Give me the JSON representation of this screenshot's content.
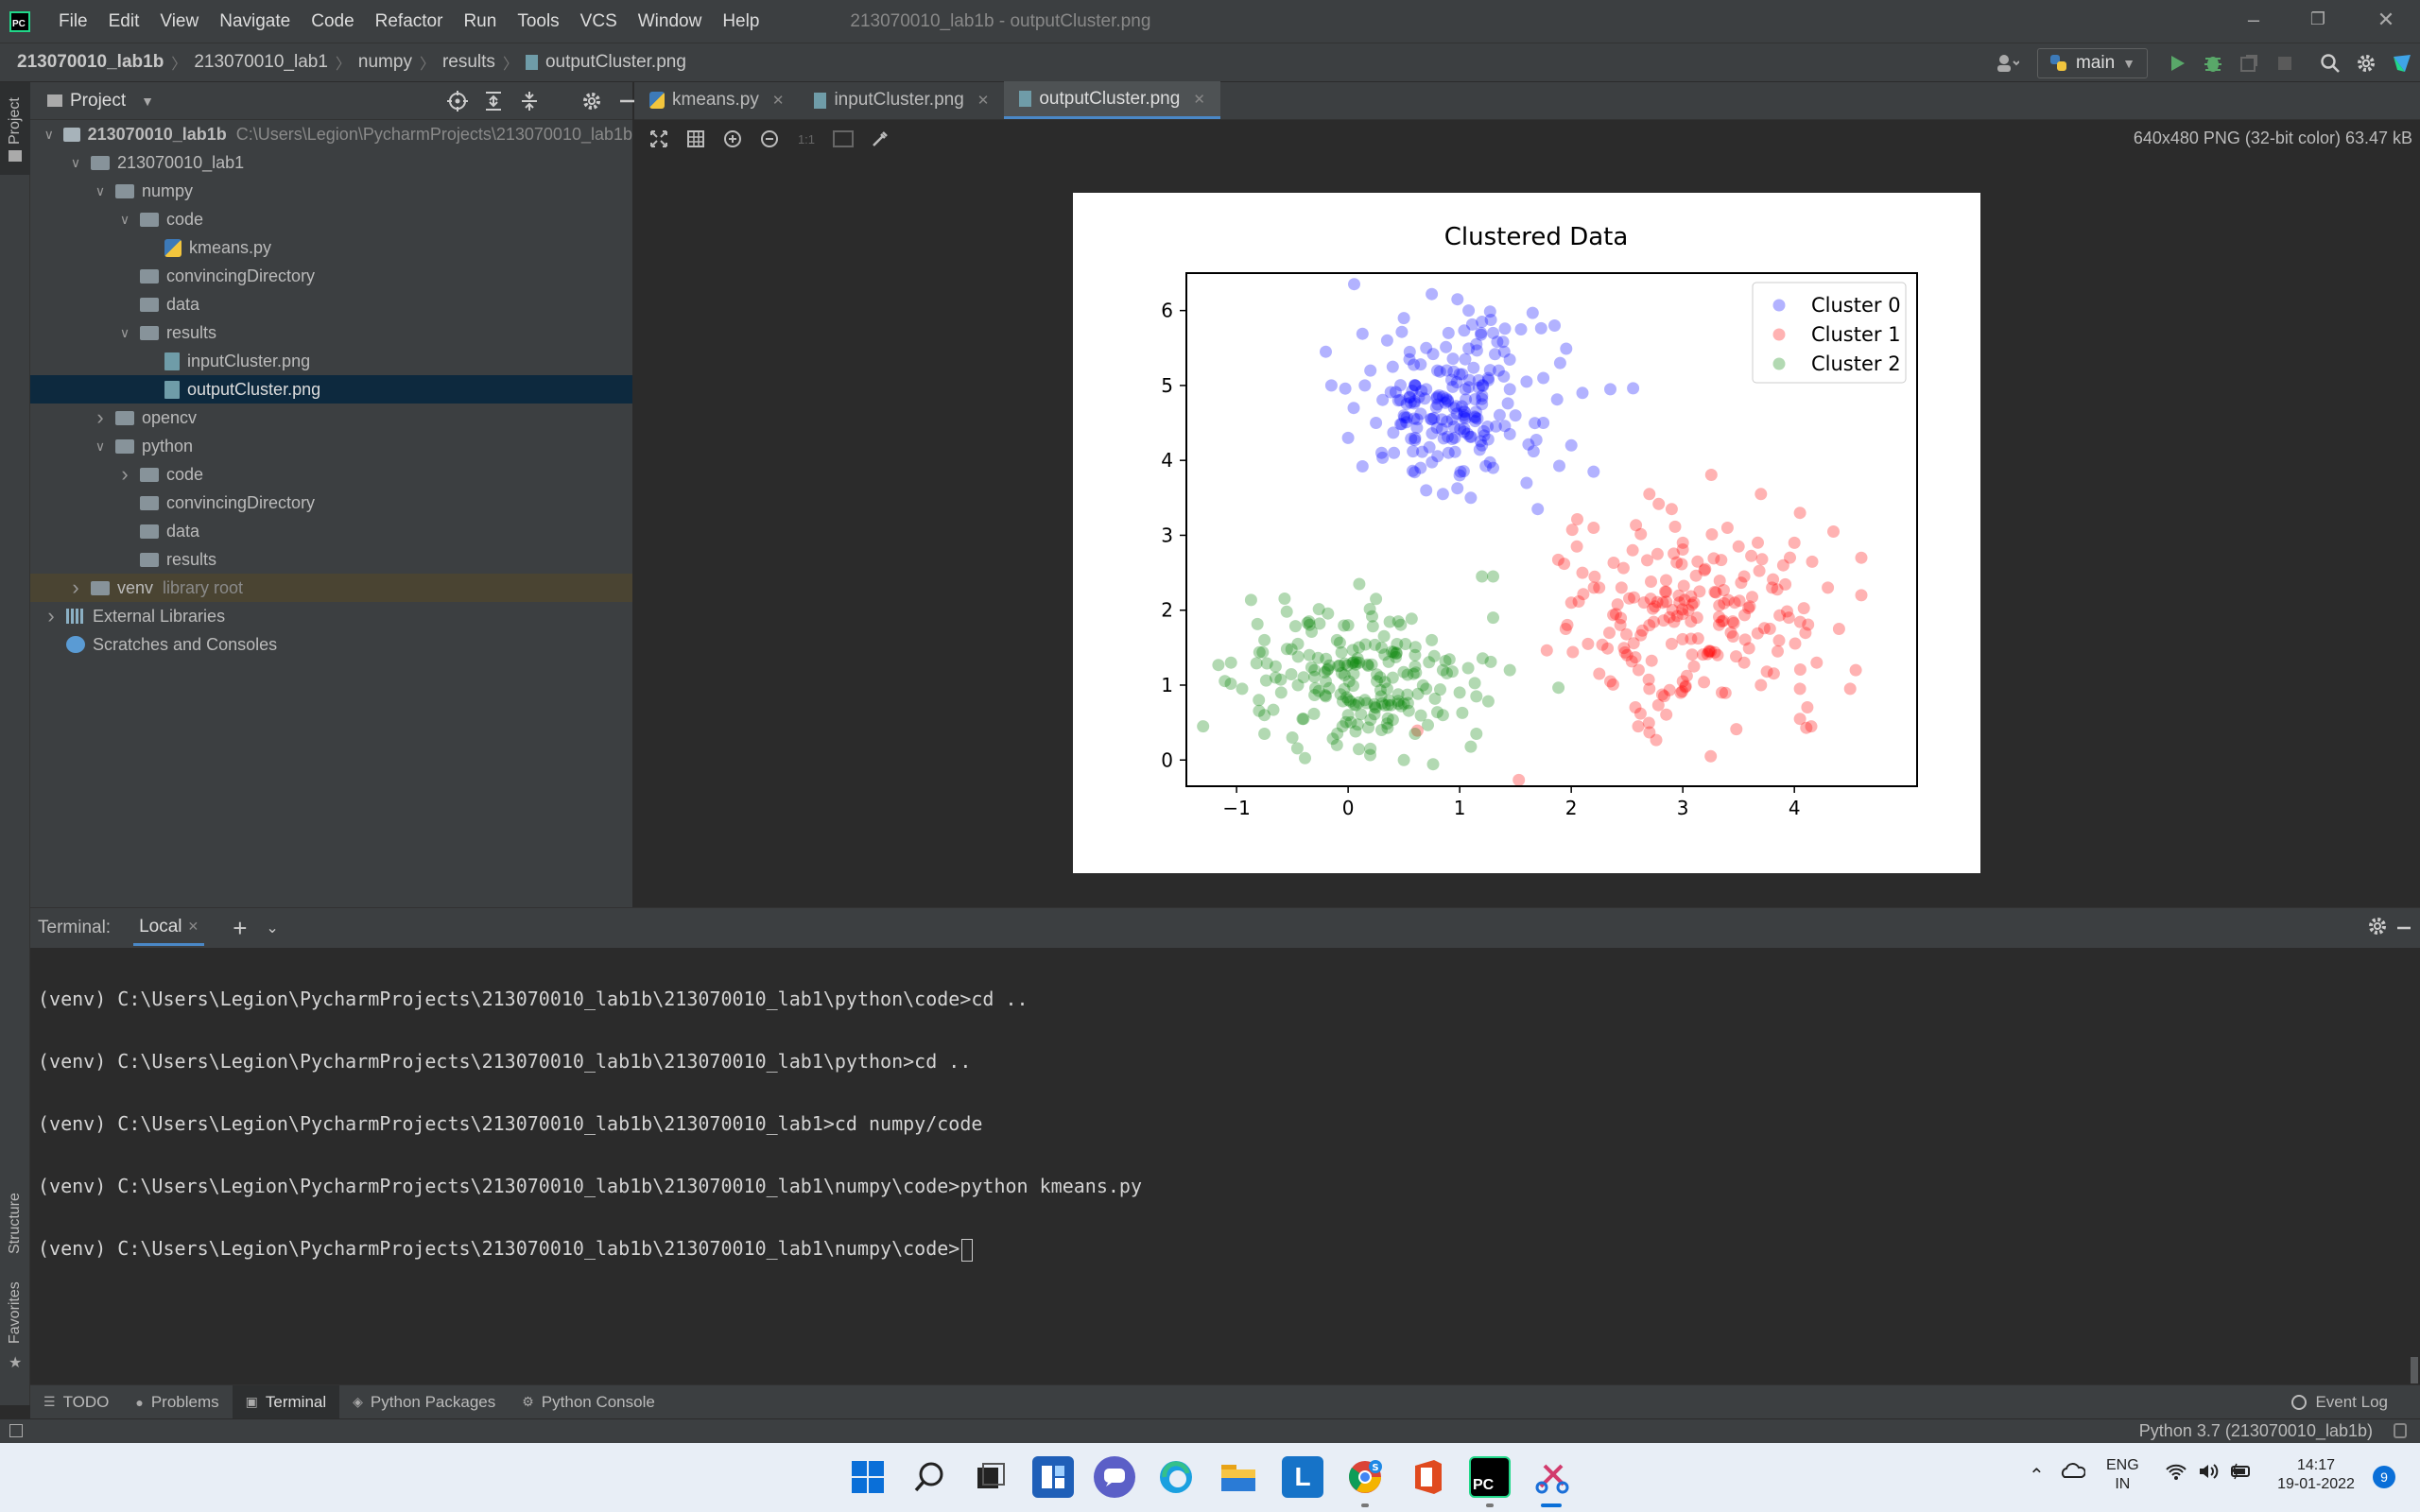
{
  "window": {
    "title": "213070010_lab1b - outputCluster.png",
    "menu": [
      "File",
      "Edit",
      "View",
      "Navigate",
      "Code",
      "Refactor",
      "Run",
      "Tools",
      "VCS",
      "Window",
      "Help"
    ]
  },
  "breadcrumb": [
    "213070010_lab1b",
    "213070010_lab1",
    "numpy",
    "results",
    "outputCluster.png"
  ],
  "toolbar": {
    "branch": "main"
  },
  "left_strip": {
    "project": "Project",
    "structure": "Structure",
    "favorites": "Favorites"
  },
  "project_panel": {
    "title": "Project",
    "root_path": "C:\\Users\\Legion\\PycharmProjects\\213070010_lab1b",
    "tree": [
      {
        "label": "213070010_lab1b",
        "depth": 0,
        "kind": "root",
        "open": true
      },
      {
        "label": "213070010_lab1",
        "depth": 1,
        "kind": "folder",
        "open": true
      },
      {
        "label": "numpy",
        "depth": 2,
        "kind": "folder",
        "open": true
      },
      {
        "label": "code",
        "depth": 3,
        "kind": "folder",
        "open": true
      },
      {
        "label": "kmeans.py",
        "depth": 4,
        "kind": "py"
      },
      {
        "label": "convincingDirectory",
        "depth": 3,
        "kind": "folder"
      },
      {
        "label": "data",
        "depth": 3,
        "kind": "folder"
      },
      {
        "label": "results",
        "depth": 3,
        "kind": "folder",
        "open": true
      },
      {
        "label": "inputCluster.png",
        "depth": 4,
        "kind": "file"
      },
      {
        "label": "outputCluster.png",
        "depth": 4,
        "kind": "file",
        "selected": true
      },
      {
        "label": "opencv",
        "depth": 2,
        "kind": "folder",
        "closed": true
      },
      {
        "label": "python",
        "depth": 2,
        "kind": "folder",
        "open": true
      },
      {
        "label": "code",
        "depth": 3,
        "kind": "folder",
        "closed": true
      },
      {
        "label": "convincingDirectory",
        "depth": 3,
        "kind": "folder"
      },
      {
        "label": "data",
        "depth": 3,
        "kind": "folder"
      },
      {
        "label": "results",
        "depth": 3,
        "kind": "folder"
      },
      {
        "label": "venv",
        "depth": 1,
        "kind": "folder",
        "closed": true,
        "note": "library root",
        "venv": true
      },
      {
        "label": "External Libraries",
        "depth": 0,
        "kind": "lib",
        "closed": true
      },
      {
        "label": "Scratches and Consoles",
        "depth": 0,
        "kind": "scratch"
      }
    ]
  },
  "editor": {
    "tabs": [
      {
        "label": "kmeans.py",
        "icon": "python-file-icon"
      },
      {
        "label": "inputCluster.png",
        "icon": "image-file-icon"
      },
      {
        "label": "outputCluster.png",
        "icon": "image-file-icon",
        "active": true
      }
    ],
    "image_info": "640x480 PNG (32-bit color) 63.47 kB"
  },
  "chart_data": {
    "type": "scatter",
    "title": "Clustered Data",
    "xlim": [
      -1.45,
      5.1
    ],
    "ylim": [
      -0.35,
      6.5
    ],
    "xticks": [
      -1,
      0,
      1,
      2,
      3,
      4
    ],
    "xtick_labels": [
      "−1",
      "0",
      "1",
      "2",
      "3",
      "4"
    ],
    "yticks": [
      0,
      1,
      2,
      3,
      4,
      5,
      6
    ],
    "legend_position": "top-right",
    "series": [
      {
        "name": "Cluster 0",
        "color": "#0000ff",
        "center": [
          0.92,
          4.75
        ],
        "spread": [
          0.42,
          0.55
        ],
        "n": 210,
        "points": [
          [
            0.75,
            6.22
          ],
          [
            0.98,
            6.15
          ],
          [
            1.08,
            6.0
          ],
          [
            1.2,
            5.85
          ],
          [
            0.5,
            5.9
          ],
          [
            0.35,
            5.6
          ],
          [
            0.7,
            5.5
          ],
          [
            1.3,
            5.7
          ],
          [
            1.55,
            5.75
          ],
          [
            1.85,
            5.8
          ],
          [
            1.9,
            5.3
          ],
          [
            1.75,
            5.1
          ],
          [
            1.35,
            5.2
          ],
          [
            1.05,
            5.35
          ],
          [
            0.8,
            5.2
          ],
          [
            0.6,
            5.0
          ],
          [
            0.4,
            5.25
          ],
          [
            0.15,
            5.0
          ],
          [
            -0.2,
            5.45
          ],
          [
            -0.15,
            5.0
          ],
          [
            0.05,
            4.7
          ],
          [
            0.25,
            4.5
          ],
          [
            0.5,
            4.6
          ],
          [
            0.75,
            4.55
          ],
          [
            0.95,
            4.7
          ],
          [
            1.2,
            4.75
          ],
          [
            1.5,
            4.6
          ],
          [
            1.75,
            4.5
          ],
          [
            2.1,
            4.9
          ],
          [
            2.35,
            4.95
          ],
          [
            0.0,
            4.3
          ],
          [
            0.3,
            4.1
          ],
          [
            0.6,
            4.3
          ],
          [
            0.9,
            4.1
          ],
          [
            1.2,
            4.2
          ],
          [
            1.45,
            4.35
          ],
          [
            0.65,
            3.9
          ],
          [
            1.0,
            3.8
          ],
          [
            1.3,
            3.9
          ],
          [
            1.6,
            3.7
          ],
          [
            1.1,
            3.5
          ],
          [
            0.85,
            3.55
          ],
          [
            0.7,
            3.6
          ],
          [
            2.0,
            4.2
          ],
          [
            2.2,
            3.85
          ],
          [
            1.7,
            3.35
          ],
          [
            0.9,
            5.7
          ],
          [
            1.15,
            5.55
          ],
          [
            1.4,
            5.45
          ],
          [
            0.55,
            5.35
          ],
          [
            0.85,
            4.85
          ],
          [
            1.05,
            4.95
          ],
          [
            0.45,
            4.8
          ],
          [
            0.2,
            5.2
          ],
          [
            1.6,
            5.05
          ],
          [
            0.95,
            4.45
          ],
          [
            1.25,
            4.45
          ],
          [
            0.7,
            4.95
          ],
          [
            1.0,
            5.15
          ],
          [
            1.45,
            4.95
          ]
        ]
      },
      {
        "name": "Cluster 1",
        "color": "#ff0000",
        "center": [
          3.1,
          1.9
        ],
        "spread": [
          0.58,
          0.62
        ],
        "n": 210,
        "points": [
          [
            2.7,
            3.55
          ],
          [
            3.7,
            3.55
          ],
          [
            2.9,
            3.35
          ],
          [
            3.4,
            3.1
          ],
          [
            4.05,
            3.3
          ],
          [
            4.35,
            3.05
          ],
          [
            2.2,
            3.1
          ],
          [
            2.55,
            2.8
          ],
          [
            3.0,
            2.9
          ],
          [
            3.5,
            2.85
          ],
          [
            4.0,
            2.9
          ],
          [
            4.6,
            2.7
          ],
          [
            2.1,
            2.5
          ],
          [
            2.45,
            2.3
          ],
          [
            2.85,
            2.4
          ],
          [
            3.2,
            2.55
          ],
          [
            3.55,
            2.45
          ],
          [
            3.9,
            2.6
          ],
          [
            4.3,
            2.3
          ],
          [
            2.0,
            2.1
          ],
          [
            2.4,
            1.95
          ],
          [
            2.7,
            1.8
          ],
          [
            3.05,
            2.0
          ],
          [
            3.35,
            1.85
          ],
          [
            3.6,
            2.05
          ],
          [
            3.95,
            1.9
          ],
          [
            4.4,
            1.75
          ],
          [
            2.15,
            1.55
          ],
          [
            2.5,
            1.4
          ],
          [
            2.9,
            1.55
          ],
          [
            3.25,
            1.45
          ],
          [
            3.55,
            1.3
          ],
          [
            3.85,
            1.45
          ],
          [
            4.2,
            1.3
          ],
          [
            4.55,
            1.2
          ],
          [
            2.35,
            1.05
          ],
          [
            2.7,
            0.95
          ],
          [
            3.0,
            1.05
          ],
          [
            3.35,
            0.9
          ],
          [
            3.7,
            1.0
          ],
          [
            4.05,
            0.95
          ],
          [
            4.5,
            0.95
          ],
          [
            2.6,
            0.45
          ],
          [
            3.25,
            0.05
          ],
          [
            4.05,
            0.55
          ],
          [
            1.95,
            1.75
          ],
          [
            2.05,
            2.85
          ],
          [
            3.15,
            2.25
          ],
          [
            2.75,
            2.05
          ],
          [
            3.45,
            1.65
          ],
          [
            2.25,
            2.3
          ],
          [
            3.8,
            2.3
          ],
          [
            4.6,
            2.2
          ],
          [
            3.1,
            1.25
          ]
        ]
      },
      {
        "name": "Cluster 2",
        "color": "#008000",
        "center": [
          0.15,
          1.05
        ],
        "spread": [
          0.55,
          0.48
        ],
        "n": 210,
        "points": [
          [
            0.1,
            2.35
          ],
          [
            0.25,
            2.15
          ],
          [
            -0.55,
            1.98
          ],
          [
            -0.35,
            1.85
          ],
          [
            0.0,
            1.8
          ],
          [
            0.45,
            1.85
          ],
          [
            0.75,
            1.6
          ],
          [
            -0.75,
            1.6
          ],
          [
            -0.45,
            1.55
          ],
          [
            -0.1,
            1.6
          ],
          [
            0.3,
            1.5
          ],
          [
            0.6,
            1.4
          ],
          [
            0.85,
            1.2
          ],
          [
            -1.05,
            1.3
          ],
          [
            -0.65,
            1.25
          ],
          [
            -0.3,
            1.2
          ],
          [
            0.05,
            1.15
          ],
          [
            0.4,
            1.1
          ],
          [
            0.7,
            0.95
          ],
          [
            1.0,
            0.9
          ],
          [
            -0.95,
            0.95
          ],
          [
            -0.6,
            0.9
          ],
          [
            -0.2,
            0.85
          ],
          [
            0.15,
            0.8
          ],
          [
            0.5,
            0.75
          ],
          [
            0.85,
            0.6
          ],
          [
            -0.75,
            0.6
          ],
          [
            -0.4,
            0.55
          ],
          [
            -0.05,
            0.45
          ],
          [
            0.3,
            0.4
          ],
          [
            0.6,
            0.35
          ],
          [
            -0.5,
            0.3
          ],
          [
            -0.1,
            0.2
          ],
          [
            0.2,
            0.15
          ],
          [
            0.5,
            0.0
          ],
          [
            -0.75,
            0.35
          ],
          [
            -1.3,
            0.45
          ],
          [
            1.15,
            0.35
          ],
          [
            1.2,
            2.45
          ],
          [
            1.3,
            2.45
          ],
          [
            1.3,
            1.9
          ],
          [
            1.45,
            1.2
          ],
          [
            1.15,
            0.85
          ],
          [
            -0.2,
            1.05
          ],
          [
            0.1,
            1.3
          ],
          [
            0.35,
            0.95
          ],
          [
            -0.45,
            1.0
          ],
          [
            0.6,
            1.25
          ],
          [
            -0.8,
            0.8
          ],
          [
            0.0,
            0.6
          ]
        ]
      }
    ]
  },
  "terminal": {
    "label": "Terminal:",
    "tab": "Local",
    "lines": [
      "(venv) C:\\Users\\Legion\\PycharmProjects\\213070010_lab1b\\213070010_lab1\\python\\code>cd ..",
      "(venv) C:\\Users\\Legion\\PycharmProjects\\213070010_lab1b\\213070010_lab1\\python>cd ..",
      "(venv) C:\\Users\\Legion\\PycharmProjects\\213070010_lab1b\\213070010_lab1>cd numpy/code",
      "(venv) C:\\Users\\Legion\\PycharmProjects\\213070010_lab1b\\213070010_lab1\\numpy\\code>python kmeans.py",
      "(venv) C:\\Users\\Legion\\PycharmProjects\\213070010_lab1b\\213070010_lab1\\numpy\\code>"
    ]
  },
  "bottom_tabs": [
    {
      "label": "TODO",
      "icon": "list-icon"
    },
    {
      "label": "Problems",
      "icon": "warning-icon"
    },
    {
      "label": "Terminal",
      "icon": "terminal-icon",
      "active": true
    },
    {
      "label": "Python Packages",
      "icon": "packages-icon"
    },
    {
      "label": "Python Console",
      "icon": "console-icon"
    }
  ],
  "event_log": "Event Log",
  "status": {
    "interpreter": "Python 3.7 (213070010_lab1b)"
  },
  "taskbar": {
    "lang": "ENG",
    "region": "IN",
    "time": "14:17",
    "date": "19-01-2022",
    "notifications": "9"
  }
}
